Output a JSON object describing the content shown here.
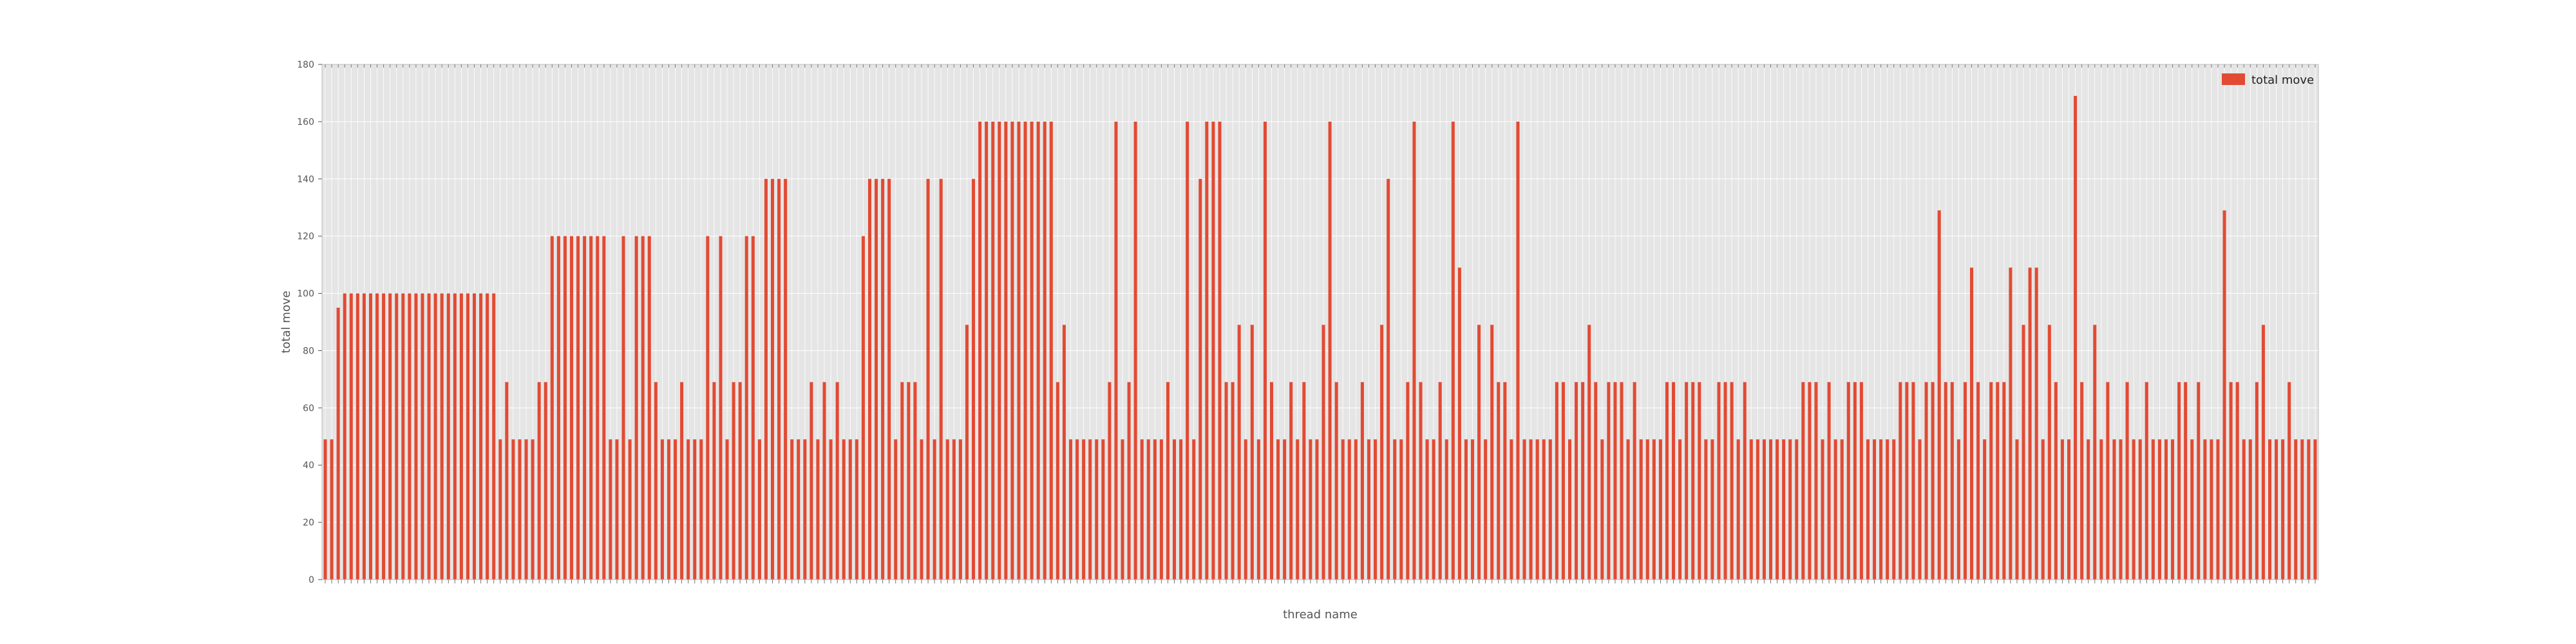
{
  "chart_data": {
    "type": "bar",
    "xlabel": "thread name",
    "ylabel": "total move",
    "ylim": [
      0,
      180
    ],
    "yticks": [
      0,
      20,
      40,
      60,
      80,
      100,
      120,
      140,
      160,
      180
    ],
    "legend": {
      "position": "top-right",
      "entries": [
        "total move"
      ]
    },
    "grid": true,
    "colors": {
      "bar": "#e24a33",
      "plot_bg": "#e5e5e5",
      "grid": "#ffffff"
    },
    "series": [
      {
        "name": "total move",
        "values": [
          49,
          49,
          95,
          100,
          100,
          100,
          100,
          100,
          100,
          100,
          100,
          100,
          100,
          100,
          100,
          100,
          100,
          100,
          100,
          100,
          100,
          100,
          100,
          100,
          100,
          100,
          100,
          49,
          69,
          49,
          49,
          49,
          49,
          69,
          69,
          120,
          120,
          120,
          120,
          120,
          120,
          120,
          120,
          120,
          49,
          49,
          120,
          49,
          120,
          120,
          120,
          69,
          49,
          49,
          49,
          69,
          49,
          49,
          49,
          120,
          69,
          120,
          49,
          69,
          69,
          120,
          120,
          49,
          140,
          140,
          140,
          140,
          49,
          49,
          49,
          69,
          49,
          69,
          49,
          69,
          49,
          49,
          49,
          120,
          140,
          140,
          140,
          140,
          49,
          69,
          69,
          69,
          49,
          140,
          49,
          140,
          49,
          49,
          49,
          89,
          140,
          160,
          160,
          160,
          160,
          160,
          160,
          160,
          160,
          160,
          160,
          160,
          160,
          69,
          89,
          49,
          49,
          49,
          49,
          49,
          49,
          69,
          160,
          49,
          69,
          160,
          49,
          49,
          49,
          49,
          69,
          49,
          49,
          160,
          49,
          140,
          160,
          160,
          160,
          69,
          69,
          89,
          49,
          89,
          49,
          160,
          69,
          49,
          49,
          69,
          49,
          69,
          49,
          49,
          89,
          160,
          69,
          49,
          49,
          49,
          69,
          49,
          49,
          89,
          140,
          49,
          49,
          69,
          160,
          69,
          49,
          49,
          69,
          49,
          160,
          109,
          49,
          49,
          89,
          49,
          89,
          69,
          69,
          49,
          160,
          49,
          49,
          49,
          49,
          49,
          69,
          69,
          49,
          69,
          69,
          89,
          69,
          49,
          69,
          69,
          69,
          49,
          69,
          49,
          49,
          49,
          49,
          69,
          69,
          49,
          69,
          69,
          69,
          49,
          49,
          69,
          69,
          69,
          49,
          69,
          49,
          49,
          49,
          49,
          49,
          49,
          49,
          49,
          69,
          69,
          69,
          49,
          69,
          49,
          49,
          69,
          69,
          69,
          49,
          49,
          49,
          49,
          49,
          69,
          69,
          69,
          49,
          69,
          69,
          129,
          69,
          69,
          49,
          69,
          109,
          69,
          49,
          69,
          69,
          69,
          109,
          49,
          89,
          109,
          109,
          49,
          89,
          69,
          49,
          49,
          169,
          69,
          49,
          89,
          49,
          69,
          49,
          49,
          69,
          49,
          49,
          69,
          49,
          49,
          49,
          49,
          69,
          69,
          49,
          69,
          49,
          49,
          49,
          129,
          69,
          69,
          49,
          49,
          69,
          89,
          49,
          49,
          49,
          69,
          49,
          49,
          49,
          49
        ]
      }
    ]
  }
}
